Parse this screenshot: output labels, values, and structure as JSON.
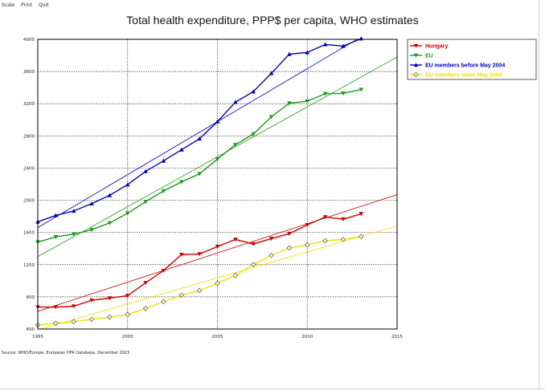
{
  "menu": [
    "Scale",
    "Print",
    "Quit"
  ],
  "source": "Source: WHO/Europe, European HFA Database, December 2015",
  "chart_data": {
    "type": "line",
    "title": "Total health expenditure, PPP$ per capita, WHO estimates",
    "xlabel": "",
    "ylabel": "",
    "xlim": [
      1995,
      2015
    ],
    "ylim": [
      400,
      4000
    ],
    "x_ticks": [
      1995,
      2000,
      2005,
      2010,
      2015
    ],
    "y_ticks": [
      400,
      800,
      1200,
      1600,
      2000,
      2400,
      2800,
      3200,
      3600,
      4000
    ],
    "grid": true,
    "legend_position": "top-right",
    "trendlines": true,
    "x": [
      1995,
      1996,
      1997,
      1998,
      1999,
      2000,
      2001,
      2002,
      2003,
      2004,
      2005,
      2006,
      2007,
      2008,
      2009,
      2010,
      2011,
      2012,
      2013
    ],
    "series": [
      {
        "name": "Hungary",
        "color": "#d40000",
        "marker": "triangle-down",
        "values": [
          672,
          672,
          683,
          757,
          784,
          814,
          975,
          1126,
          1325,
          1332,
          1425,
          1513,
          1456,
          1524,
          1585,
          1694,
          1792,
          1765,
          1832
        ],
        "trend": [
          [
            1995,
            620
          ],
          [
            2015,
            2070
          ]
        ]
      },
      {
        "name": "EU",
        "color": "#1a9a1a",
        "marker": "triangle-down",
        "values": [
          1480,
          1545,
          1578,
          1633,
          1718,
          1838,
          1982,
          2115,
          2228,
          2328,
          2512,
          2690,
          2823,
          3036,
          3206,
          3231,
          3324,
          3329,
          3376
        ],
        "trend": [
          [
            1995,
            1300
          ],
          [
            2015,
            3780
          ]
        ]
      },
      {
        "name": "EU members before May 2004",
        "color": "#0000c0",
        "marker": "triangle-up",
        "values": [
          1732,
          1812,
          1867,
          1958,
          2062,
          2194,
          2359,
          2490,
          2628,
          2764,
          2977,
          3219,
          3351,
          3577,
          3815,
          3837,
          3936,
          3916,
          4009
        ],
        "trend": [
          [
            1995,
            1660
          ],
          [
            2013,
            4030
          ]
        ]
      },
      {
        "name": "EU members since May 2004",
        "color": "#f0e000",
        "marker": "diamond-open",
        "values": [
          448,
          471,
          492,
          521,
          547,
          580,
          655,
          740,
          821,
          879,
          968,
          1065,
          1201,
          1316,
          1407,
          1445,
          1497,
          1513,
          1550
        ],
        "trend": [
          [
            1995,
            390
          ],
          [
            2015,
            1680
          ]
        ]
      }
    ]
  }
}
